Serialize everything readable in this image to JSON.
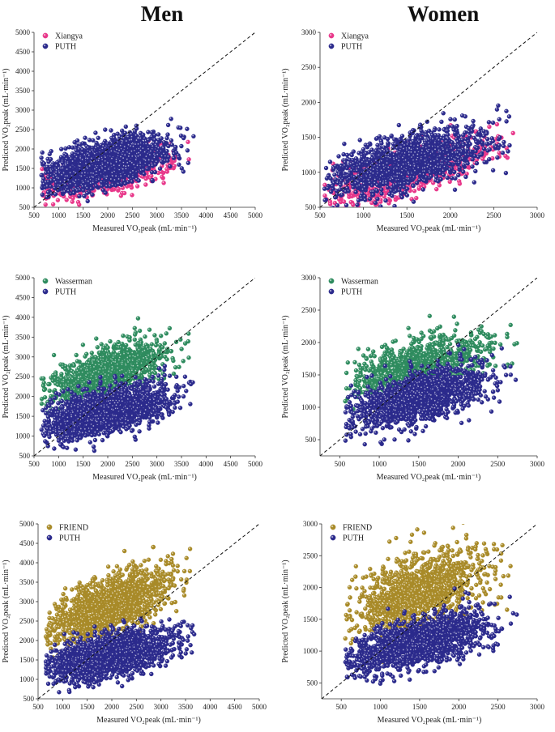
{
  "column_titles": {
    "men": "Men",
    "women": "Women"
  },
  "colors": {
    "PUTH": "#2b2a8c",
    "Xiangya": "#e8388a",
    "Wasserman": "#2e8b5e",
    "FRIEND": "#a88a28"
  },
  "chart_data": [
    {
      "id": "men-xiangya",
      "type": "scatter",
      "title": "Men",
      "xlabel": "Measured VO₂peak (mL·min⁻¹)",
      "ylabel": "Predicted VO₂peak (mL·min⁻¹)",
      "xlim": [
        500,
        5000
      ],
      "ylim": [
        500,
        5000
      ],
      "xticks": [
        500,
        1000,
        1500,
        2000,
        2500,
        3000,
        3500,
        4000,
        4500,
        5000
      ],
      "yticks": [
        500,
        1000,
        1500,
        2000,
        2500,
        3000,
        3500,
        4000,
        4500,
        5000
      ],
      "identity_line": true,
      "legend": [
        "Xiangya",
        "PUTH"
      ],
      "series": [
        {
          "name": "Xiangya",
          "n": 1100,
          "x_range": [
            650,
            3750
          ],
          "y_center": [
            1000,
            1850
          ],
          "y_spread": 220
        },
        {
          "name": "PUTH",
          "n": 1800,
          "x_range": [
            650,
            3750
          ],
          "y_center": [
            1250,
            2150
          ],
          "y_spread": 270
        }
      ]
    },
    {
      "id": "women-xiangya",
      "type": "scatter",
      "title": "Women",
      "xlabel": "Measured VO₂peak (mL·min⁻¹)",
      "ylabel": "Predicted VO₂peak (mL·min⁻¹)",
      "xlim": [
        500,
        3000
      ],
      "ylim": [
        500,
        3000
      ],
      "xticks": [
        500,
        1000,
        1500,
        2000,
        2500,
        3000
      ],
      "yticks": [
        500,
        1000,
        1500,
        2000,
        2500,
        3000
      ],
      "identity_line": true,
      "legend": [
        "Xiangya",
        "PUTH"
      ],
      "series": [
        {
          "name": "Xiangya",
          "n": 900,
          "x_range": [
            550,
            2750
          ],
          "y_center": [
            700,
            1450
          ],
          "y_spread": 160
        },
        {
          "name": "PUTH",
          "n": 1500,
          "x_range": [
            550,
            2750
          ],
          "y_center": [
            850,
            1550
          ],
          "y_spread": 190
        }
      ]
    },
    {
      "id": "men-wasserman",
      "type": "scatter",
      "title": "Men",
      "xlabel": "Measured VO₂peak (mL·min⁻¹)",
      "ylabel": "Predicted VO₂peak (mL·min⁻¹)",
      "xlim": [
        500,
        5000
      ],
      "ylim": [
        500,
        5000
      ],
      "xticks": [
        500,
        1000,
        1500,
        2000,
        2500,
        3000,
        3500,
        4000,
        4500,
        5000
      ],
      "yticks": [
        500,
        1000,
        1500,
        2000,
        2500,
        3000,
        3500,
        4000,
        4500,
        5000
      ],
      "identity_line": true,
      "legend": [
        "Wasserman",
        "PUTH"
      ],
      "series": [
        {
          "name": "Wasserman",
          "n": 1200,
          "x_range": [
            650,
            3750
          ],
          "y_center": [
            2100,
            3300
          ],
          "y_spread": 300
        },
        {
          "name": "PUTH",
          "n": 1800,
          "x_range": [
            650,
            3750
          ],
          "y_center": [
            1250,
            2150
          ],
          "y_spread": 270
        }
      ]
    },
    {
      "id": "women-wasserman",
      "type": "scatter",
      "title": "Women",
      "xlabel": "Measured VO₂peak (mL·min⁻¹)",
      "ylabel": "Predicted VO₂peak (mL·min⁻¹)",
      "xlim": [
        250,
        3000
      ],
      "ylim": [
        250,
        3000
      ],
      "xticks": [
        500,
        1000,
        1500,
        2000,
        2500,
        3000
      ],
      "yticks": [
        500,
        1000,
        1500,
        2000,
        2500,
        3000
      ],
      "identity_line": true,
      "legend": [
        "Wasserman",
        "PUTH"
      ],
      "series": [
        {
          "name": "Wasserman",
          "n": 1000,
          "x_range": [
            550,
            2750
          ],
          "y_center": [
            1350,
            2050
          ],
          "y_spread": 200
        },
        {
          "name": "PUTH",
          "n": 1500,
          "x_range": [
            550,
            2750
          ],
          "y_center": [
            850,
            1550
          ],
          "y_spread": 190
        }
      ]
    },
    {
      "id": "men-friend",
      "type": "scatter",
      "title": "Men",
      "xlabel": "Measured VO₂peak (mL·min⁻¹)",
      "ylabel": "Predicted VO₂peak (mL·min⁻¹)",
      "xlim": [
        500,
        5000
      ],
      "ylim": [
        500,
        5000
      ],
      "xticks": [
        500,
        1000,
        1500,
        2000,
        2500,
        3000,
        3500,
        4000,
        4500,
        5000
      ],
      "yticks": [
        500,
        1000,
        1500,
        2000,
        2500,
        3000,
        3500,
        4000,
        4500,
        5000
      ],
      "identity_line": true,
      "legend": [
        "FRIEND",
        "PUTH"
      ],
      "series": [
        {
          "name": "FRIEND",
          "n": 1400,
          "x_range": [
            650,
            3750
          ],
          "y_center": [
            2300,
            3700
          ],
          "y_spread": 380
        },
        {
          "name": "PUTH",
          "n": 1800,
          "x_range": [
            650,
            3750
          ],
          "y_center": [
            1250,
            2150
          ],
          "y_spread": 270
        }
      ]
    },
    {
      "id": "women-friend",
      "type": "scatter",
      "title": "Women",
      "xlabel": "Measured VO₂peak (mL·min⁻¹)",
      "ylabel": "Predicted VO₂peak (mL·min⁻¹)",
      "xlim": [
        250,
        3000
      ],
      "ylim": [
        250,
        3000
      ],
      "xticks": [
        500,
        1000,
        1500,
        2000,
        2500,
        3000
      ],
      "yticks": [
        500,
        1000,
        1500,
        2000,
        2500,
        3000
      ],
      "identity_line": true,
      "legend": [
        "FRIEND",
        "PUTH"
      ],
      "series": [
        {
          "name": "FRIEND",
          "n": 1200,
          "x_range": [
            550,
            2750
          ],
          "y_center": [
            1550,
            2450
          ],
          "y_spread": 280
        },
        {
          "name": "PUTH",
          "n": 1500,
          "x_range": [
            550,
            2750
          ],
          "y_center": [
            850,
            1550
          ],
          "y_spread": 190
        }
      ]
    }
  ]
}
